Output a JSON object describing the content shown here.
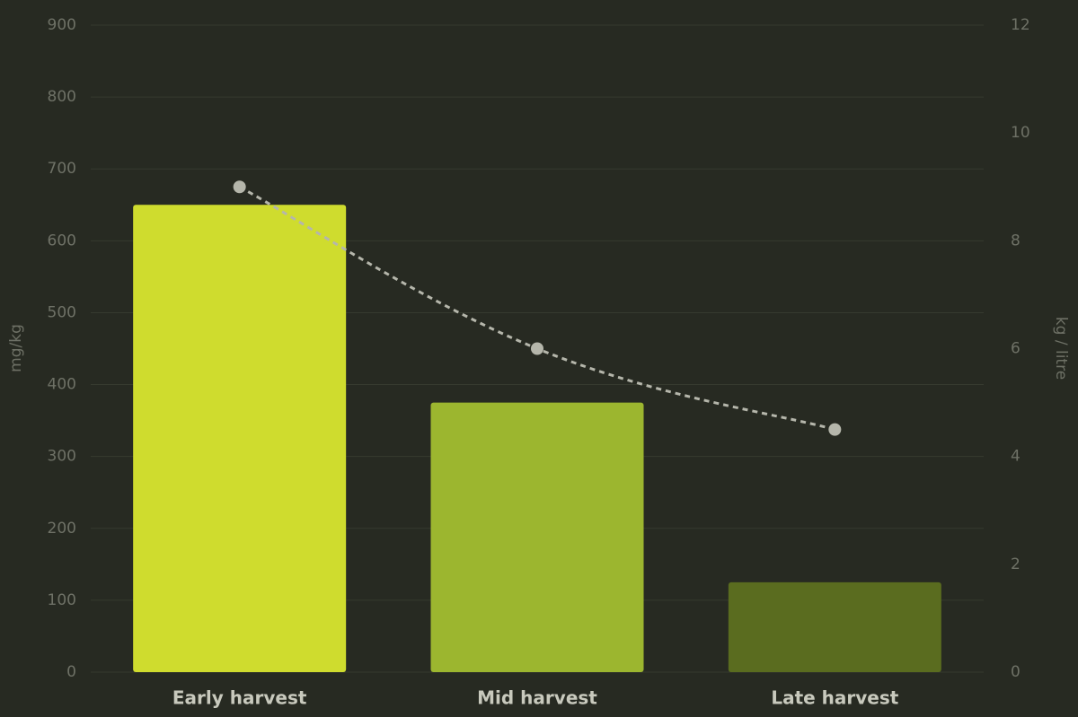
{
  "chart_data": {
    "type": "bar",
    "categories": [
      "Early harvest",
      "Mid harvest",
      "Late harvest"
    ],
    "series": [
      {
        "values": [
          650,
          375,
          125
        ],
        "colors": [
          "#cfdc2e",
          "#9cb62f",
          "#5a6c1f"
        ]
      },
      {
        "type": "line",
        "axis": "y2",
        "color": "#b5b6ab",
        "dashed": true,
        "values": [
          9,
          6,
          4.5
        ]
      }
    ],
    "ylabel": "mg/kg",
    "y2label": "kg / litre",
    "ylim": [
      0,
      900
    ],
    "yticks": [
      0,
      100,
      200,
      300,
      400,
      500,
      600,
      700,
      800,
      900
    ],
    "y2lim": [
      0,
      12
    ],
    "y2ticks": [
      0,
      2,
      4,
      6,
      8,
      10,
      12
    ],
    "grid": true
  }
}
